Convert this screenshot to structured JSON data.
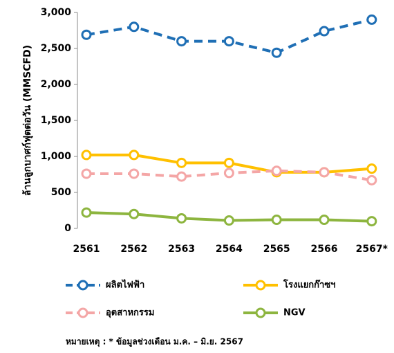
{
  "chart_data": {
    "type": "line",
    "y_label": "ล้านลูกบาศก์ฟุตต่อวัน (MMSCFD)",
    "categories": [
      "2561",
      "2562",
      "2563",
      "2564",
      "2565",
      "2566",
      "2567*"
    ],
    "series": [
      {
        "name": "ผลิตไฟฟ้า",
        "color": "#1f6fb5",
        "dashed": true,
        "values": [
          2690,
          2800,
          2600,
          2600,
          2440,
          2740,
          2900
        ]
      },
      {
        "name": "โรงแยกก๊าซฯ",
        "color": "#ffc000",
        "dashed": false,
        "values": [
          1020,
          1020,
          910,
          910,
          780,
          780,
          830
        ]
      },
      {
        "name": "อุตสาหกรรม",
        "color": "#f4a6a6",
        "dashed": true,
        "values": [
          760,
          760,
          720,
          770,
          800,
          780,
          670
        ]
      },
      {
        "name": "NGV",
        "color": "#8db53f",
        "dashed": false,
        "values": [
          220,
          200,
          140,
          110,
          120,
          120,
          100
        ]
      }
    ],
    "ylim": [
      0,
      3000
    ],
    "yticks": [
      0,
      500,
      {
        "value": 1000,
        "label": "1,000"
      },
      {
        "value": 1500,
        "label": "1,500"
      },
      {
        "value": 2000,
        "label": "2,000"
      },
      {
        "value": 2500,
        "label": "2,500"
      },
      {
        "value": 3000,
        "label": "3,000"
      }
    ],
    "note": "หมายเหตุ : * ข้อมูลช่วงเดือน ม.ค. – มิ.ย. 2567"
  }
}
